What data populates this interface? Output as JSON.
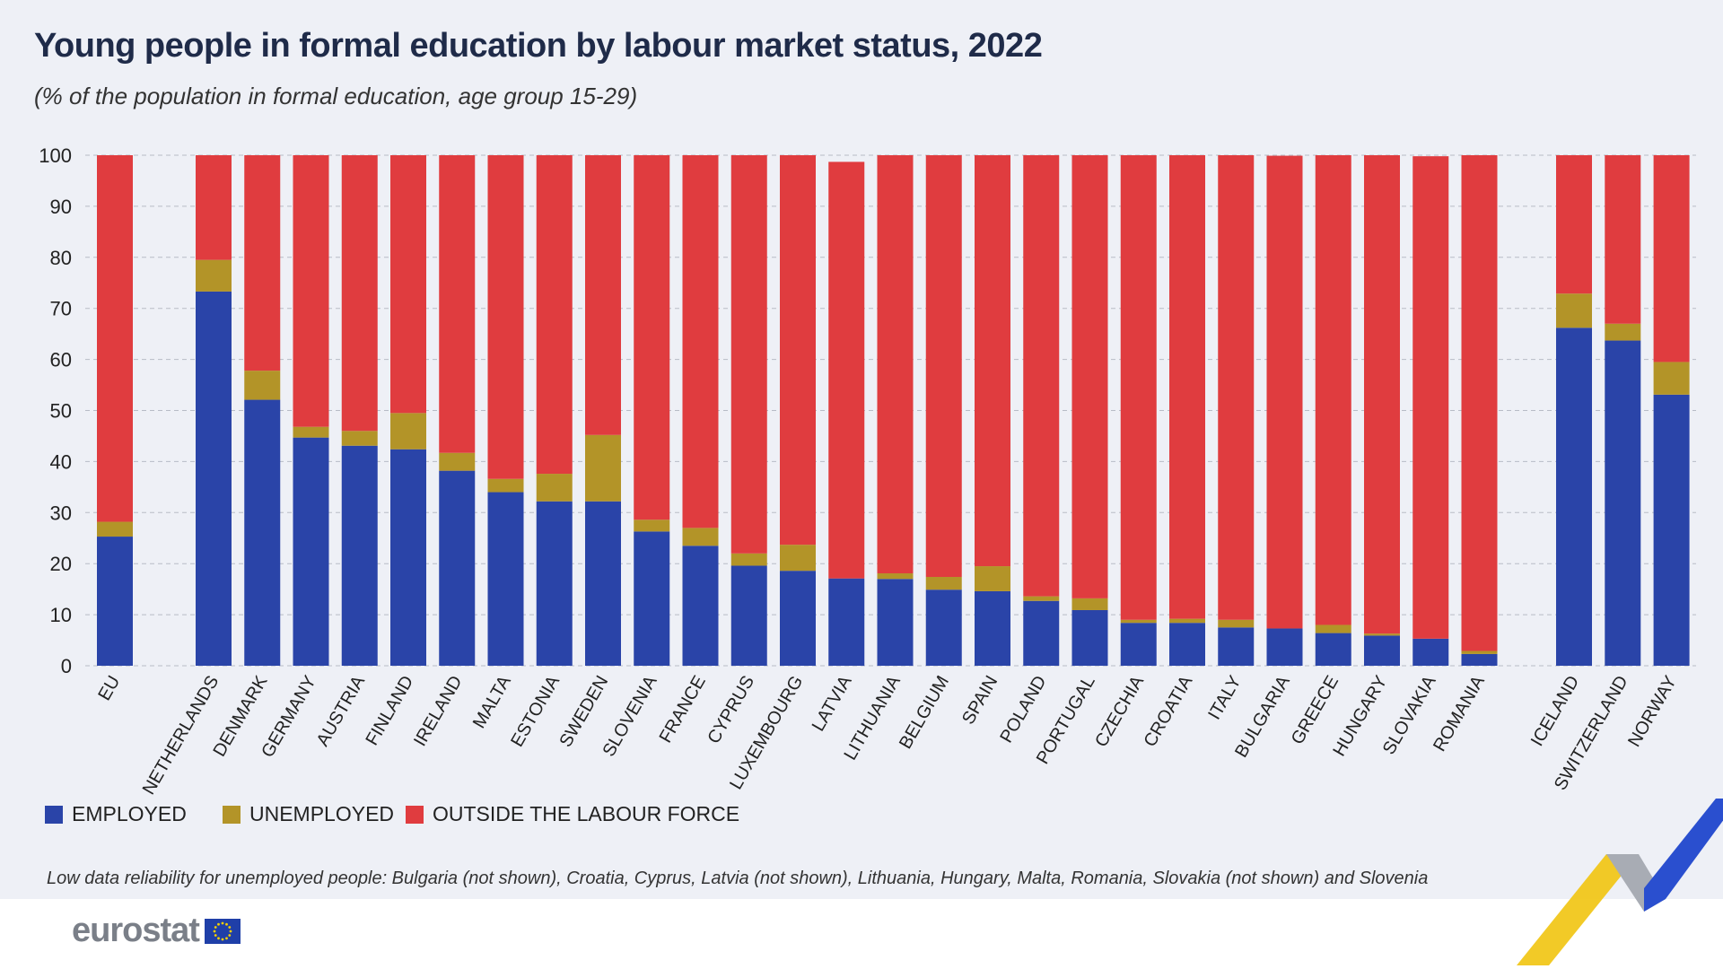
{
  "title": "Young people in formal education by labour market status, 2022",
  "subtitle": "(% of the population in formal education, age group 15-29)",
  "footnote": "Low data reliability for unemployed people: Bulgaria (not shown), Croatia, Cyprus, Latvia (not shown), Lithuania, Hungary, Malta, Romania, Slovakia (not shown) and Slovenia",
  "logo_text": "eurostat",
  "colors": {
    "employed": "#2a44a8",
    "unemployed": "#b39428",
    "outside": "#e03c3f"
  },
  "chart_data": {
    "type": "bar",
    "stacked": true,
    "title": "Young people in formal education by labour market status, 2022",
    "subtitle": "(% of the population in formal education, age group 15-29)",
    "xlabel": "",
    "ylabel": "",
    "ylim": [
      0,
      100
    ],
    "yticks": [
      0,
      10,
      20,
      30,
      40,
      50,
      60,
      70,
      80,
      90,
      100
    ],
    "grid": true,
    "legend_position": "bottom-left",
    "categories": [
      "EU",
      "NETHERLANDS",
      "DENMARK",
      "GERMANY",
      "AUSTRIA",
      "FINLAND",
      "IRELAND",
      "MALTA",
      "ESTONIA",
      "SWEDEN",
      "SLOVENIA",
      "FRANCE",
      "CYPRUS",
      "LUXEMBOURG",
      "LATVIA",
      "LITHUANIA",
      "BELGIUM",
      "SPAIN",
      "POLAND",
      "PORTUGAL",
      "CZECHIA",
      "CROATIA",
      "ITALY",
      "BULGARIA",
      "GREECE",
      "HUNGARY",
      "SLOVAKIA",
      "ROMANIA",
      "ICELAND",
      "SWITZERLAND",
      "NORWAY"
    ],
    "groups": [
      1,
      27,
      3
    ],
    "series": [
      {
        "name": "EMPLOYED",
        "color": "#2a44a8",
        "values": [
          25.3,
          73.3,
          52.1,
          44.7,
          43.1,
          42.4,
          38.2,
          34.0,
          32.2,
          32.2,
          26.3,
          23.5,
          19.6,
          18.6,
          17.1,
          17.0,
          14.9,
          14.6,
          12.7,
          10.9,
          8.4,
          8.4,
          7.5,
          7.3,
          6.4,
          5.9,
          5.3,
          2.3,
          66.2,
          63.7,
          53.1
        ]
      },
      {
        "name": "UNEMPLOYED",
        "color": "#b39428",
        "values": [
          2.9,
          6.2,
          5.7,
          2.1,
          2.9,
          7.1,
          3.5,
          2.6,
          5.4,
          13.0,
          2.3,
          3.5,
          2.4,
          5.1,
          0,
          1.1,
          2.5,
          4.9,
          0.9,
          2.3,
          0.6,
          0.8,
          1.5,
          0,
          1.6,
          0.4,
          0,
          0.6,
          6.7,
          3.3,
          6.4
        ]
      },
      {
        "name": "OUTSIDE THE LABOUR FORCE",
        "color": "#e03c3f",
        "values": [
          71.8,
          20.5,
          42.2,
          53.2,
          54.0,
          50.5,
          58.3,
          63.4,
          62.4,
          54.8,
          71.4,
          73.0,
          78.0,
          76.3,
          81.6,
          81.9,
          82.6,
          80.5,
          86.4,
          86.8,
          91.0,
          90.8,
          91.0,
          92.6,
          92.0,
          93.7,
          94.5,
          97.1,
          27.1,
          33.0,
          40.5
        ]
      }
    ]
  }
}
